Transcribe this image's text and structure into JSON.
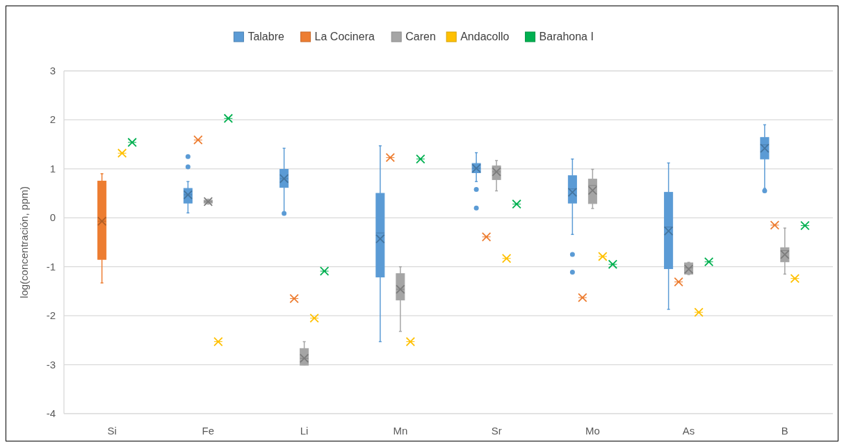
{
  "chart_data": {
    "type": "box",
    "ylabel": "log(concentración, ppm)",
    "categories": [
      "Si",
      "Fe",
      "Li",
      "Mn",
      "Sr",
      "Mo",
      "As",
      "B"
    ],
    "ylim": [
      -4,
      3
    ],
    "yticks": [
      -4,
      -3,
      -2,
      -1,
      0,
      1,
      2,
      3
    ],
    "grid": "y",
    "legend": "top",
    "marker": "cross",
    "series": [
      {
        "name": "Talabre",
        "color": "#5b9bd5",
        "boxes": [
          null,
          {
            "low": 0.1,
            "q1": 0.3,
            "median": 0.47,
            "q3": 0.6,
            "high": 0.74,
            "mean": 0.47,
            "outliers": [
              1.04,
              1.25
            ]
          },
          {
            "low": 0.12,
            "q1": 0.62,
            "median": 0.8,
            "q3": 0.99,
            "high": 1.42,
            "mean": 0.8,
            "outliers": [
              0.09
            ]
          },
          {
            "low": -2.53,
            "q1": -1.21,
            "median": -0.31,
            "q3": 0.5,
            "high": 1.47,
            "mean": -0.43
          },
          {
            "low": 0.74,
            "q1": 0.92,
            "median": 1.01,
            "q3": 1.11,
            "high": 1.33,
            "mean": 1.01,
            "outliers": [
              0.58,
              0.2
            ]
          },
          {
            "low": -0.34,
            "q1": 0.3,
            "median": 0.59,
            "q3": 0.86,
            "high": 1.2,
            "mean": 0.52,
            "outliers": [
              -0.75,
              -1.11
            ]
          },
          {
            "low": -1.87,
            "q1": -1.04,
            "median": -0.19,
            "q3": 0.52,
            "high": 1.12,
            "mean": -0.27
          },
          {
            "low": 0.6,
            "q1": 1.2,
            "median": 1.49,
            "q3": 1.64,
            "high": 1.9,
            "mean": 1.42,
            "outliers": [
              0.55
            ]
          }
        ]
      },
      {
        "name": "La Cocinera",
        "color": "#ed7d31",
        "boxes": [
          {
            "low": -1.33,
            "q1": -0.85,
            "median": -0.07,
            "q3": 0.75,
            "high": 0.9,
            "mean": -0.07
          },
          {
            "low": 1.59,
            "q1": 1.59,
            "median": 1.59,
            "q3": 1.59,
            "high": 1.59,
            "mean": 1.59
          },
          {
            "low": -1.65,
            "q1": -1.65,
            "median": -1.65,
            "q3": -1.65,
            "high": -1.65,
            "mean": -1.65
          },
          {
            "low": 1.23,
            "q1": 1.23,
            "median": 1.23,
            "q3": 1.23,
            "high": 1.23,
            "mean": 1.23
          },
          {
            "low": -0.39,
            "q1": -0.39,
            "median": -0.39,
            "q3": -0.39,
            "high": -0.39,
            "mean": -0.39
          },
          {
            "low": -1.63,
            "q1": -1.63,
            "median": -1.63,
            "q3": -1.63,
            "high": -1.63,
            "mean": -1.63
          },
          {
            "low": -1.31,
            "q1": -1.31,
            "median": -1.31,
            "q3": -1.31,
            "high": -1.31,
            "mean": -1.31
          },
          {
            "low": -0.15,
            "q1": -0.15,
            "median": -0.15,
            "q3": -0.15,
            "high": -0.15,
            "mean": -0.15
          }
        ]
      },
      {
        "name": "Caren",
        "color": "#a5a5a5",
        "boxes": [
          null,
          {
            "low": 0.28,
            "q1": 0.3,
            "median": 0.33,
            "q3": 0.36,
            "high": 0.38,
            "mean": 0.33
          },
          {
            "low": -3,
            "q1": -3.01,
            "median": -2.87,
            "q3": -2.67,
            "high": -2.53,
            "mean": -2.87
          },
          {
            "low": -2.32,
            "q1": -1.68,
            "median": -1.46,
            "q3": -1.14,
            "high": -1,
            "mean": -1.46
          },
          {
            "low": 0.55,
            "q1": 0.78,
            "median": 0.94,
            "q3": 1.06,
            "high": 1.17,
            "mean": 0.94
          },
          {
            "low": 0.19,
            "q1": 0.29,
            "median": 0.66,
            "q3": 0.79,
            "high": 0.99,
            "mean": 0.56
          },
          {
            "low": -1.16,
            "q1": -1.15,
            "median": -1.02,
            "q3": -0.92,
            "high": -0.91,
            "mean": -1.05
          },
          {
            "low": -1.15,
            "q1": -0.9,
            "median": -0.67,
            "q3": -0.61,
            "high": -0.21,
            "mean": -0.75
          }
        ]
      },
      {
        "name": "Andacollo",
        "color": "#ffc000",
        "boxes": [
          {
            "low": 1.32,
            "q1": 1.32,
            "median": 1.32,
            "q3": 1.32,
            "high": 1.32,
            "mean": 1.32
          },
          {
            "low": -2.53,
            "q1": -2.53,
            "median": -2.53,
            "q3": -2.53,
            "high": -2.53,
            "mean": -2.53
          },
          {
            "low": -2.05,
            "q1": -2.05,
            "median": -2.05,
            "q3": -2.05,
            "high": -2.05,
            "mean": -2.05
          },
          {
            "low": -2.53,
            "q1": -2.53,
            "median": -2.53,
            "q3": -2.53,
            "high": -2.53,
            "mean": -2.53
          },
          {
            "low": -0.83,
            "q1": -0.83,
            "median": -0.83,
            "q3": -0.83,
            "high": -0.83,
            "mean": -0.83
          },
          {
            "low": -0.79,
            "q1": -0.79,
            "median": -0.79,
            "q3": -0.79,
            "high": -0.79,
            "mean": -0.79
          },
          {
            "low": -1.93,
            "q1": -1.93,
            "median": -1.93,
            "q3": -1.93,
            "high": -1.93,
            "mean": -1.93
          },
          {
            "low": -1.24,
            "q1": -1.24,
            "median": -1.24,
            "q3": -1.24,
            "high": -1.24,
            "mean": -1.24
          }
        ]
      },
      {
        "name": "Barahona I",
        "color": "#00b050",
        "boxes": [
          {
            "low": 1.54,
            "q1": 1.54,
            "median": 1.54,
            "q3": 1.54,
            "high": 1.54,
            "mean": 1.54
          },
          {
            "low": 2.03,
            "q1": 2.03,
            "median": 2.03,
            "q3": 2.03,
            "high": 2.03,
            "mean": 2.03
          },
          {
            "low": -1.09,
            "q1": -1.09,
            "median": -1.09,
            "q3": -1.09,
            "high": -1.09,
            "mean": -1.09
          },
          {
            "low": 1.2,
            "q1": 1.2,
            "median": 1.2,
            "q3": 1.2,
            "high": 1.2,
            "mean": 1.2
          },
          {
            "low": 0.28,
            "q1": 0.28,
            "median": 0.28,
            "q3": 0.28,
            "high": 0.28,
            "mean": 0.28
          },
          {
            "low": -0.95,
            "q1": -0.95,
            "median": -0.95,
            "q3": -0.95,
            "high": -0.95,
            "mean": -0.95
          },
          {
            "low": -0.9,
            "q1": -0.9,
            "median": -0.9,
            "q3": -0.9,
            "high": -0.9,
            "mean": -0.9
          },
          {
            "low": -0.16,
            "q1": -0.16,
            "median": -0.16,
            "q3": -0.16,
            "high": -0.16,
            "mean": -0.16
          }
        ]
      }
    ]
  }
}
